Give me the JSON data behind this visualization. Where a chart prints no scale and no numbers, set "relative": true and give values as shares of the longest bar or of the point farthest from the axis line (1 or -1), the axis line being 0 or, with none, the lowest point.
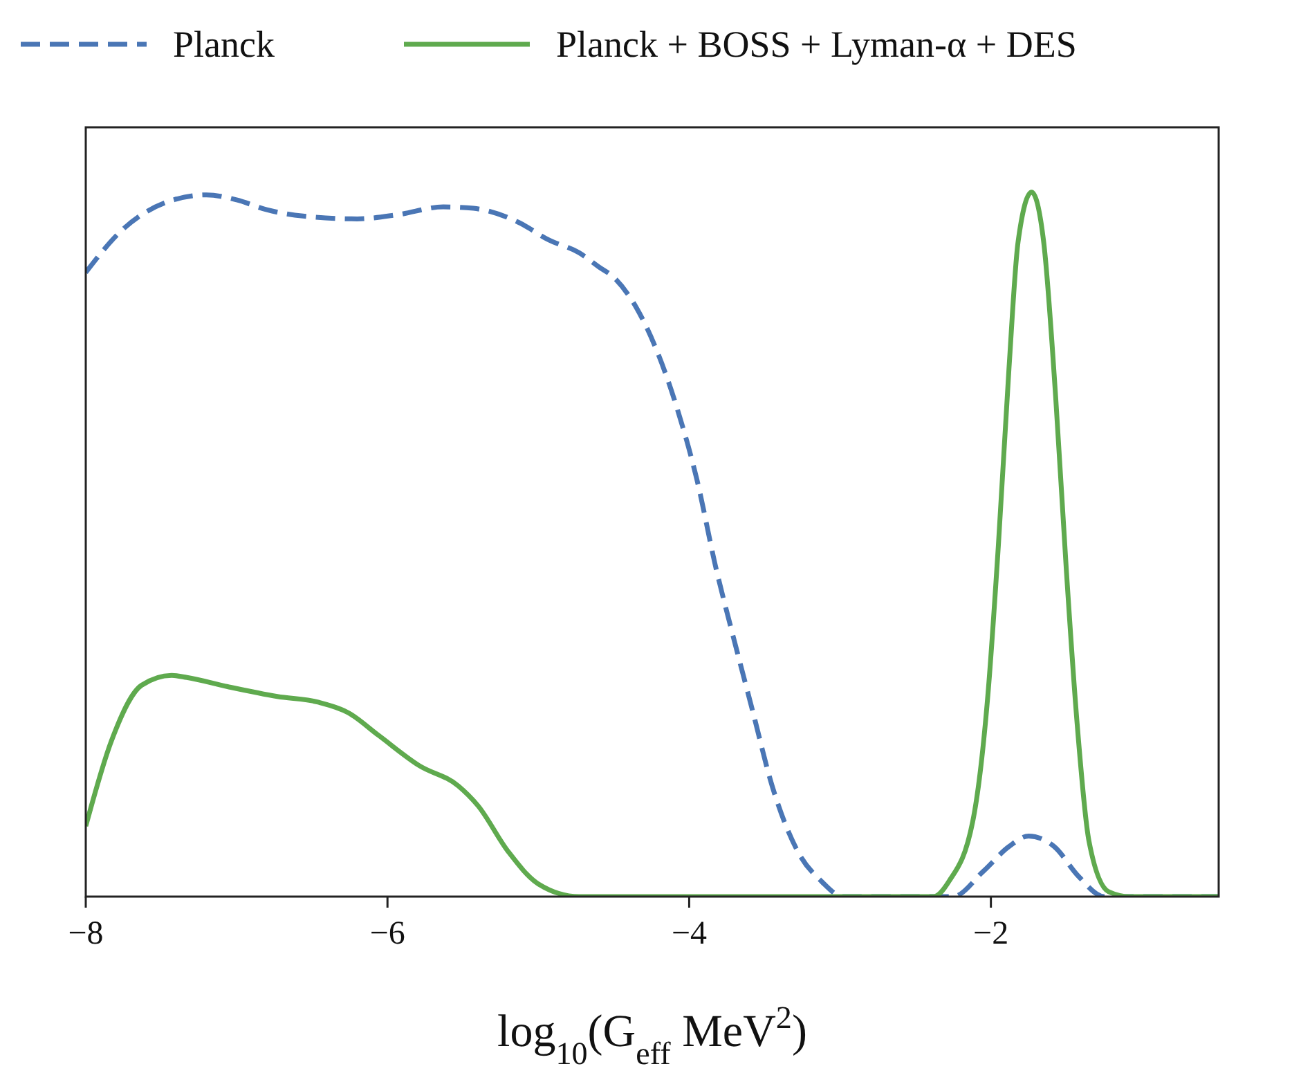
{
  "chart_data": {
    "type": "line",
    "relative": true,
    "xlabel": "log$_{10}$(G$_{eff}$ MeV$^{2}$)",
    "xlim": [
      -8,
      -0.49
    ],
    "xticks": [
      {
        "value": -8,
        "label": "−8"
      },
      {
        "value": -6,
        "label": "−6"
      },
      {
        "value": -4,
        "label": "−4"
      },
      {
        "value": -2,
        "label": "−2"
      }
    ],
    "legend": "top",
    "tick_labels": "x",
    "series": [
      {
        "name": "Planck",
        "color": "#4a76b5",
        "line_style": "dashed",
        "x": [
          -8,
          -7.76,
          -7.46,
          -7.2,
          -7,
          -6.8,
          -6.56,
          -6.2,
          -5.93,
          -5.63,
          -5.43,
          -5.13,
          -4.93,
          -4.73,
          -4.6,
          -4.5,
          -4.35,
          -4.08,
          -3.95,
          -3.82,
          -3.72,
          -3.58,
          -3.45,
          -3.28,
          -3.12,
          -2.98,
          -2.25,
          -2.05,
          -1.88,
          -1.75,
          -1.58,
          -1.42,
          -1.25,
          -0.49
        ],
        "values": [
          0.886,
          0.946,
          0.986,
          0.996,
          0.989,
          0.975,
          0.966,
          0.962,
          0.968,
          0.979,
          0.977,
          0.957,
          0.932,
          0.914,
          0.894,
          0.879,
          0.836,
          0.693,
          0.593,
          0.464,
          0.379,
          0.264,
          0.157,
          0.064,
          0.021,
          0,
          0,
          0.036,
          0.071,
          0.086,
          0.071,
          0.029,
          0,
          0
        ]
      },
      {
        "name": "Planck + BOSS + Lyman-α + DES",
        "color": "#5faa4e",
        "line_style": "solid",
        "x": [
          -8,
          -7.83,
          -7.63,
          -7.43,
          -7.33,
          -7.06,
          -6.73,
          -6.46,
          -6.26,
          -6.06,
          -5.79,
          -5.53,
          -5.4,
          -5.2,
          -5,
          -4.73,
          -2.38,
          -2.28,
          -2.12,
          -2.02,
          -1.95,
          -1.88,
          -1.82,
          -1.73,
          -1.65,
          -1.57,
          -1.5,
          -1.43,
          -1.35,
          -1.22,
          -1.08,
          -0.49
        ],
        "values": [
          0.1,
          0.221,
          0.3,
          0.314,
          0.311,
          0.298,
          0.284,
          0.276,
          0.261,
          0.229,
          0.186,
          0.157,
          0.129,
          0.064,
          0.018,
          0,
          0,
          0.021,
          0.107,
          0.286,
          0.5,
          0.75,
          0.929,
          1,
          0.929,
          0.707,
          0.464,
          0.25,
          0.079,
          0.007,
          0,
          0
        ]
      }
    ]
  }
}
